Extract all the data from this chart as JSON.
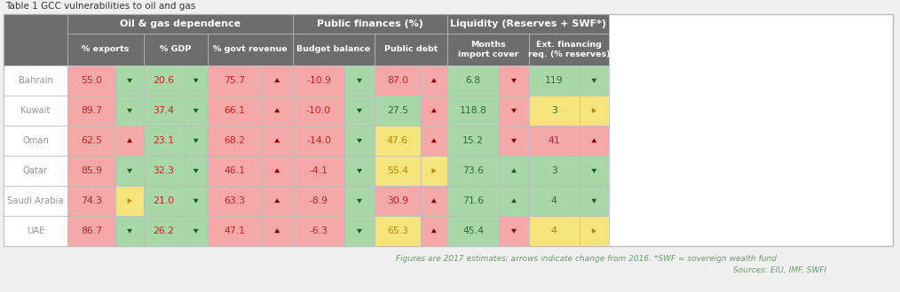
{
  "title": "Table 1 GCC vulnerabilities to oil and gas",
  "footnote1": "Figures are 2017 estimates; arrows indicate change from 2016. *SWF = sovereign wealth fund",
  "footnote2": "Sources: EIU, IMF, SWFI",
  "group_labels": [
    "Oil & gas dependence",
    "Public finances (%)",
    "Liquidity (Reserves + SWF*)"
  ],
  "col_headers": [
    "% exports",
    "% GDP",
    "% govt revenue",
    "Budget balance",
    "Public debt",
    "Months\nimport cover",
    "Ext. financing\nreq. (% reserves)"
  ],
  "countries": [
    "Bahrain",
    "Kuwait",
    "Oman",
    "Qatar",
    "Saudi Arabia",
    "UAE"
  ],
  "values": [
    [
      "55.0",
      "20.6",
      "75.7",
      "-10.9",
      "87.0",
      "6.8",
      "119"
    ],
    [
      "89.7",
      "37.4",
      "66.1",
      "-10.0",
      "27.5",
      "118.8",
      "3"
    ],
    [
      "62.5",
      "23.1",
      "68.2",
      "-14.0",
      "47.6",
      "15.2",
      "41"
    ],
    [
      "85.9",
      "32.3",
      "46.1",
      "-4.1",
      "55.4",
      "73.6",
      "3"
    ],
    [
      "74.3",
      "21.0",
      "63.3",
      "-8.9",
      "30.9",
      "71.6",
      "4"
    ],
    [
      "86.7",
      "26.2",
      "47.1",
      "-6.3",
      "65.3",
      "45.4",
      "4"
    ]
  ],
  "arrow_types": [
    [
      "down_dg",
      "down_dg",
      "up_dr",
      "down_dg",
      "up_dr",
      "down_dr",
      "down_dg"
    ],
    [
      "down_dg",
      "down_dg",
      "up_dr",
      "down_dg",
      "up_dr",
      "down_dr",
      "right_go"
    ],
    [
      "up_dr",
      "down_dg",
      "up_dr",
      "down_dg",
      "up_dr",
      "down_dr",
      "up_dr"
    ],
    [
      "down_dg",
      "down_dg",
      "up_dr",
      "down_dg",
      "right_go",
      "up_dg",
      "down_dg"
    ],
    [
      "right_go",
      "down_dg",
      "up_dr",
      "down_dg",
      "up_dr",
      "up_dg",
      "down_dg"
    ],
    [
      "down_dg",
      "down_dg",
      "up_dr",
      "down_dg",
      "up_dr",
      "down_dr",
      "right_go"
    ]
  ],
  "val_bg": [
    [
      "pink",
      "green",
      "pink",
      "pink",
      "pink",
      "green",
      "green"
    ],
    [
      "pink",
      "green",
      "pink",
      "pink",
      "green",
      "green",
      "yellow"
    ],
    [
      "pink",
      "green",
      "pink",
      "pink",
      "yellow",
      "green",
      "pink"
    ],
    [
      "pink",
      "green",
      "pink",
      "pink",
      "yellow",
      "green",
      "green"
    ],
    [
      "pink",
      "green",
      "pink",
      "pink",
      "pink",
      "green",
      "green"
    ],
    [
      "pink",
      "green",
      "pink",
      "pink",
      "yellow",
      "green",
      "yellow"
    ]
  ],
  "arr_bg": [
    [
      "green",
      "green",
      "pink",
      "green",
      "pink",
      "pink",
      "green"
    ],
    [
      "green",
      "green",
      "pink",
      "green",
      "pink",
      "pink",
      "yellow"
    ],
    [
      "pink",
      "green",
      "pink",
      "green",
      "pink",
      "pink",
      "pink"
    ],
    [
      "green",
      "green",
      "pink",
      "green",
      "yellow",
      "green",
      "green"
    ],
    [
      "yellow",
      "green",
      "pink",
      "green",
      "pink",
      "green",
      "green"
    ],
    [
      "green",
      "green",
      "pink",
      "green",
      "pink",
      "pink",
      "yellow"
    ]
  ],
  "val_colors": [
    [
      "red",
      "red",
      "red",
      "red",
      "red",
      "green",
      "green"
    ],
    [
      "red",
      "red",
      "red",
      "red",
      "green",
      "green",
      "green"
    ],
    [
      "red",
      "red",
      "red",
      "red",
      "gold",
      "green",
      "red"
    ],
    [
      "red",
      "red",
      "red",
      "red",
      "gold",
      "green",
      "green"
    ],
    [
      "red",
      "red",
      "red",
      "red",
      "red",
      "green",
      "green"
    ],
    [
      "red",
      "red",
      "red",
      "red",
      "gold",
      "green",
      "gold"
    ]
  ],
  "bg_color": "#f0f0f0",
  "header_gray": "#6d6d6d",
  "pink": "#f4a8a8",
  "green": "#a8d8a8",
  "yellow": "#f5e47a",
  "white": "#ffffff",
  "border": "#bbbbbb",
  "val_red": "#cc2222",
  "val_green": "#2d6a2d",
  "val_gold": "#b8860b",
  "arrow_dg": "#1a5c1a",
  "arrow_dr": "#8b0000",
  "arrow_go": "#b8860b",
  "country_text": "#999999",
  "title_color": "#333333",
  "footnote_color": "#6a9a6a"
}
